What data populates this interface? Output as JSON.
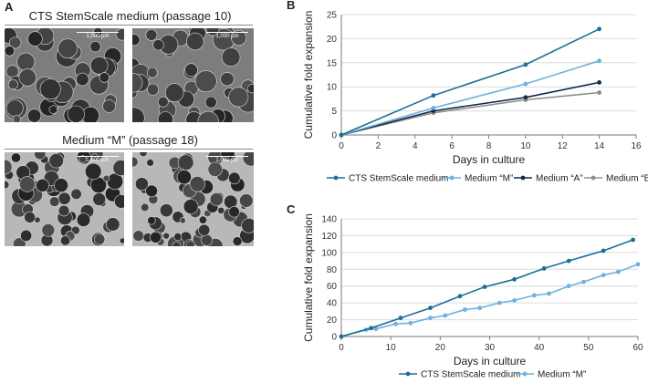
{
  "panel_a": {
    "letter": "A",
    "sections": [
      {
        "title": "CTS StemScale medium (passage 10)"
      },
      {
        "title": "Medium “M” (passage 18)"
      }
    ],
    "scale_bar_label": "1,000 µm"
  },
  "colors": {
    "cts": "#1b6f95",
    "medium_m": "#6fb1dc",
    "medium_a": "#12284f",
    "medium_b": "#8d8d8d",
    "grid": "#dcdcdc",
    "axis": "#7a7a7a"
  },
  "chart_data": [
    {
      "letter": "B",
      "type": "line",
      "title": "",
      "xlabel": "Days in culture",
      "ylabel": "Cumulative fold expansion",
      "xlim": [
        0,
        16
      ],
      "ylim": [
        0,
        25
      ],
      "xticks": [
        0,
        2,
        4,
        6,
        8,
        10,
        12,
        14,
        16
      ],
      "yticks": [
        0,
        5,
        10,
        15,
        20,
        25
      ],
      "grid": true,
      "legend_position": "bottom",
      "series": [
        {
          "name": "CTS StemScale medium",
          "color_key": "cts",
          "x": [
            0,
            5,
            10,
            14
          ],
          "y": [
            0,
            8.2,
            14.6,
            22.0
          ]
        },
        {
          "name": "Medium “M”",
          "color_key": "medium_m",
          "x": [
            0,
            5,
            10,
            14
          ],
          "y": [
            0,
            5.6,
            10.6,
            15.4
          ]
        },
        {
          "name": "Medium “A”",
          "color_key": "medium_a",
          "x": [
            0,
            5,
            10,
            14
          ],
          "y": [
            0,
            5.0,
            7.8,
            10.9
          ]
        },
        {
          "name": "Medium “B”",
          "color_key": "medium_b",
          "x": [
            0,
            5,
            10,
            14
          ],
          "y": [
            0,
            4.6,
            7.3,
            8.8
          ]
        }
      ]
    },
    {
      "letter": "C",
      "type": "line",
      "title": "",
      "xlabel": "Days in culture",
      "ylabel": "Cumulative fold expansion",
      "xlim": [
        0,
        60
      ],
      "ylim": [
        0,
        140
      ],
      "xticks": [
        0,
        10,
        20,
        30,
        40,
        50,
        60
      ],
      "yticks": [
        0,
        20,
        40,
        60,
        80,
        100,
        120,
        140
      ],
      "grid": true,
      "legend_position": "bottom",
      "series": [
        {
          "name": "CTS StemScale medium",
          "color_key": "cts",
          "x": [
            0,
            6,
            12,
            18,
            24,
            29,
            35,
            41,
            46,
            53,
            59
          ],
          "y": [
            0,
            10,
            22,
            34,
            48,
            59,
            68,
            81,
            90,
            102,
            115
          ]
        },
        {
          "name": "Medium “M”",
          "color_key": "medium_m",
          "x": [
            0,
            5,
            7,
            11,
            14,
            18,
            21,
            25,
            28,
            32,
            35,
            39,
            42,
            46,
            49,
            53,
            56,
            60
          ],
          "y": [
            0,
            8,
            9,
            15,
            16,
            22,
            25,
            32,
            34,
            40,
            43,
            49,
            51,
            60,
            65,
            73,
            77,
            86
          ]
        }
      ]
    }
  ]
}
